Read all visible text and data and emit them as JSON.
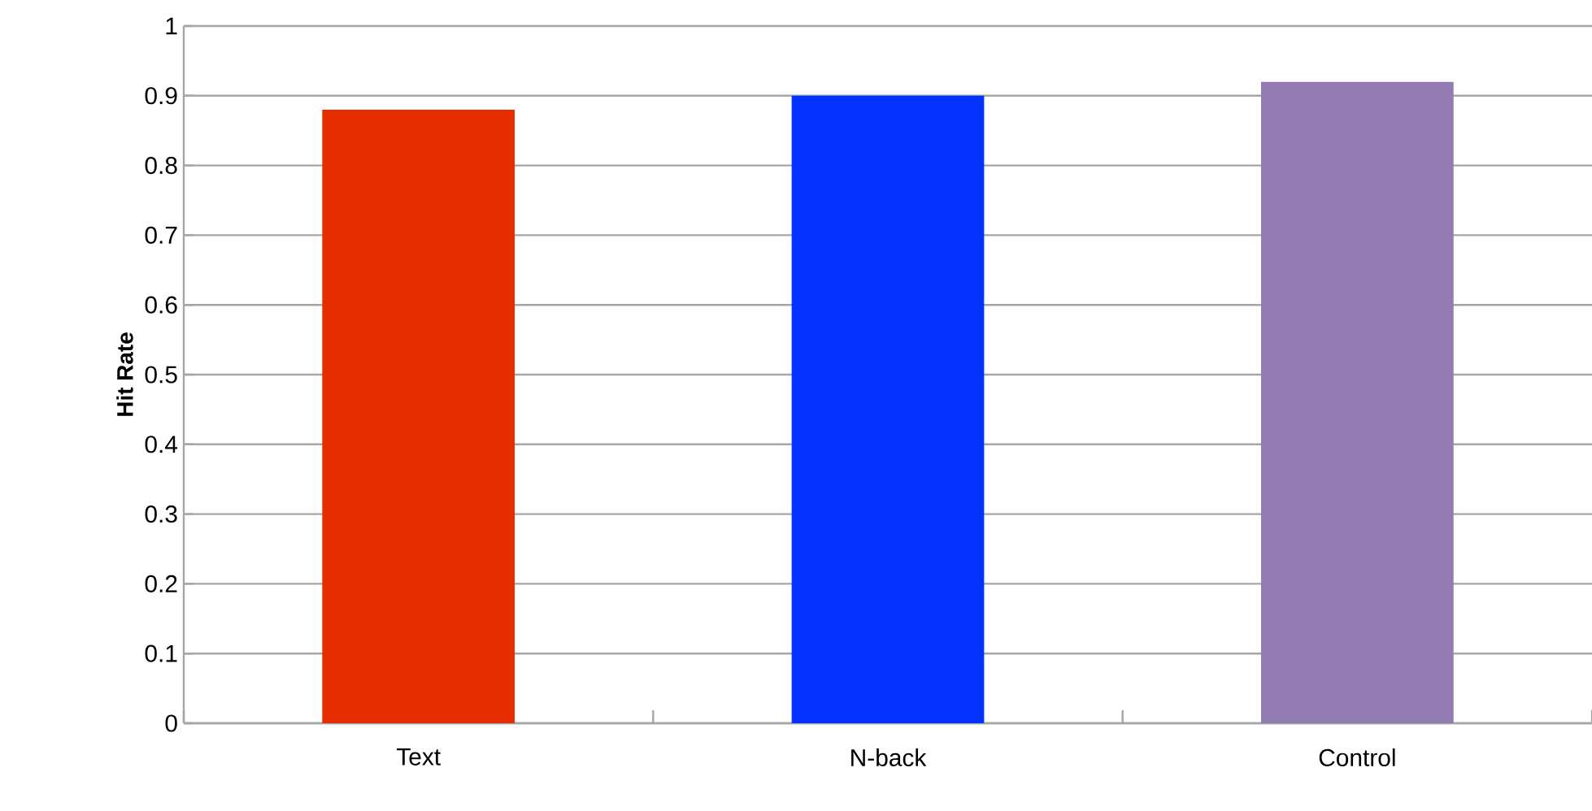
{
  "chart_data": {
    "type": "bar",
    "ylabel": "Hit Rate",
    "categories": [
      "Text",
      "N-back",
      "Control"
    ],
    "values": [
      0.88,
      0.9,
      0.92
    ],
    "colors": [
      "#e52e00",
      "#0433ff",
      "#917bb2"
    ],
    "ylim": [
      0,
      1
    ],
    "yticks": [
      0,
      0.1,
      0.2,
      0.3,
      0.4,
      0.5,
      0.6,
      0.7,
      0.8,
      0.9,
      1
    ],
    "grid": "y"
  }
}
